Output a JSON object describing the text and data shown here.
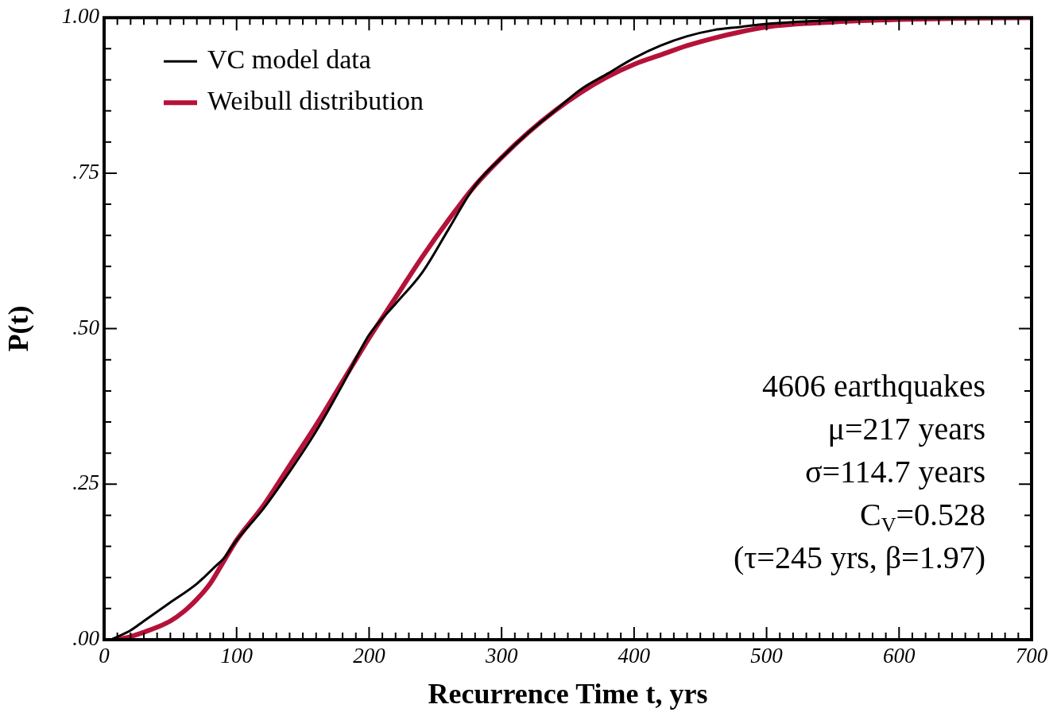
{
  "chart_data": {
    "type": "line",
    "xlabel": "Recurrence Time t, yrs",
    "ylabel": "P(t)",
    "xlim": [
      0,
      700
    ],
    "ylim": [
      0,
      1
    ],
    "xticks": [
      0,
      {
        "value": 10,
        "label": null
      },
      {
        "value": 20,
        "label": null
      },
      {
        "value": 30,
        "label": null
      },
      {
        "value": 40,
        "label": null
      },
      {
        "value": 50,
        "label": null
      },
      {
        "value": 60,
        "label": null
      },
      {
        "value": 70,
        "label": null
      },
      {
        "value": 80,
        "label": null
      },
      {
        "value": 90,
        "label": null
      },
      100,
      {
        "value": 110,
        "label": null
      },
      {
        "value": 120,
        "label": null
      },
      {
        "value": 130,
        "label": null
      },
      {
        "value": 140,
        "label": null
      },
      {
        "value": 150,
        "label": null
      },
      {
        "value": 160,
        "label": null
      },
      {
        "value": 170,
        "label": null
      },
      {
        "value": 180,
        "label": null
      },
      {
        "value": 190,
        "label": null
      },
      200,
      {
        "value": 210,
        "label": null
      },
      {
        "value": 220,
        "label": null
      },
      {
        "value": 230,
        "label": null
      },
      {
        "value": 240,
        "label": null
      },
      {
        "value": 250,
        "label": null
      },
      {
        "value": 260,
        "label": null
      },
      {
        "value": 270,
        "label": null
      },
      {
        "value": 280,
        "label": null
      },
      {
        "value": 290,
        "label": null
      },
      300,
      {
        "value": 310,
        "label": null
      },
      {
        "value": 320,
        "label": null
      },
      {
        "value": 330,
        "label": null
      },
      {
        "value": 340,
        "label": null
      },
      {
        "value": 350,
        "label": null
      },
      {
        "value": 360,
        "label": null
      },
      {
        "value": 370,
        "label": null
      },
      {
        "value": 380,
        "label": null
      },
      {
        "value": 390,
        "label": null
      },
      400,
      {
        "value": 410,
        "label": null
      },
      {
        "value": 420,
        "label": null
      },
      {
        "value": 430,
        "label": null
      },
      {
        "value": 440,
        "label": null
      },
      {
        "value": 450,
        "label": null
      },
      {
        "value": 460,
        "label": null
      },
      {
        "value": 470,
        "label": null
      },
      {
        "value": 480,
        "label": null
      },
      {
        "value": 490,
        "label": null
      },
      500,
      {
        "value": 510,
        "label": null
      },
      {
        "value": 520,
        "label": null
      },
      {
        "value": 530,
        "label": null
      },
      {
        "value": 540,
        "label": null
      },
      {
        "value": 550,
        "label": null
      },
      {
        "value": 560,
        "label": null
      },
      {
        "value": 570,
        "label": null
      },
      {
        "value": 580,
        "label": null
      },
      {
        "value": 590,
        "label": null
      },
      600,
      {
        "value": 610,
        "label": null
      },
      {
        "value": 620,
        "label": null
      },
      {
        "value": 630,
        "label": null
      },
      {
        "value": 640,
        "label": null
      },
      {
        "value": 650,
        "label": null
      },
      {
        "value": 660,
        "label": null
      },
      {
        "value": 670,
        "label": null
      },
      {
        "value": 680,
        "label": null
      },
      {
        "value": 690,
        "label": null
      },
      700
    ],
    "yticks": [
      {
        "value": 0,
        "label": ".00"
      },
      {
        "value": 0.05,
        "label": null
      },
      {
        "value": 0.1,
        "label": null
      },
      {
        "value": 0.15,
        "label": null
      },
      {
        "value": 0.2,
        "label": null
      },
      {
        "value": 0.25,
        "label": ".25"
      },
      {
        "value": 0.3,
        "label": null
      },
      {
        "value": 0.35,
        "label": null
      },
      {
        "value": 0.4,
        "label": null
      },
      {
        "value": 0.45,
        "label": null
      },
      {
        "value": 0.5,
        "label": ".50"
      },
      {
        "value": 0.55,
        "label": null
      },
      {
        "value": 0.6,
        "label": null
      },
      {
        "value": 0.65,
        "label": null
      },
      {
        "value": 0.7,
        "label": null
      },
      {
        "value": 0.75,
        "label": ".75"
      },
      {
        "value": 0.8,
        "label": null
      },
      {
        "value": 0.85,
        "label": null
      },
      {
        "value": 0.9,
        "label": null
      },
      {
        "value": 0.95,
        "label": null
      },
      {
        "value": 1,
        "label": "1.00"
      }
    ],
    "grid": false,
    "legend": "top left",
    "marker": "none",
    "line_style": "solid",
    "series": [
      {
        "name": "VC model data",
        "color": "#000000",
        "x": [
          5,
          20,
          30,
          50,
          70,
          85,
          90,
          100,
          120,
          140,
          160,
          180,
          200,
          220,
          240,
          260,
          280,
          300,
          320,
          340,
          360,
          380,
          400,
          420,
          440,
          460,
          480,
          500,
          550,
          600,
          700
        ],
        "values": [
          0,
          0.015,
          0.03,
          0.06,
          0.09,
          0.12,
          0.13,
          0.16,
          0.21,
          0.27,
          0.335,
          0.41,
          0.49,
          0.54,
          0.59,
          0.66,
          0.73,
          0.775,
          0.815,
          0.85,
          0.885,
          0.91,
          0.935,
          0.955,
          0.97,
          0.98,
          0.985,
          0.99,
          0.996,
          0.999,
          1
        ]
      },
      {
        "name": "Weibull distribution",
        "color": "#b5123a",
        "x": [
          10,
          20,
          30,
          40,
          50,
          60,
          70,
          80,
          90,
          100,
          120,
          140,
          160,
          180,
          200,
          220,
          240,
          260,
          280,
          300,
          320,
          340,
          360,
          380,
          400,
          420,
          440,
          460,
          480,
          500,
          550,
          600,
          650,
          700
        ],
        "values": [
          0,
          0.005,
          0.012,
          0.02,
          0.03,
          0.045,
          0.065,
          0.09,
          0.125,
          0.16,
          0.215,
          0.28,
          0.345,
          0.415,
          0.485,
          0.55,
          0.615,
          0.675,
          0.73,
          0.775,
          0.815,
          0.85,
          0.88,
          0.905,
          0.925,
          0.94,
          0.955,
          0.967,
          0.977,
          0.985,
          0.993,
          0.997,
          0.999,
          1
        ]
      }
    ],
    "annotations": [
      "4606 earthquakes",
      "μ=217 years",
      "σ=114.7 years",
      "C$_{V}$=0.528",
      "(τ=245 yrs, β=1.97)"
    ]
  }
}
